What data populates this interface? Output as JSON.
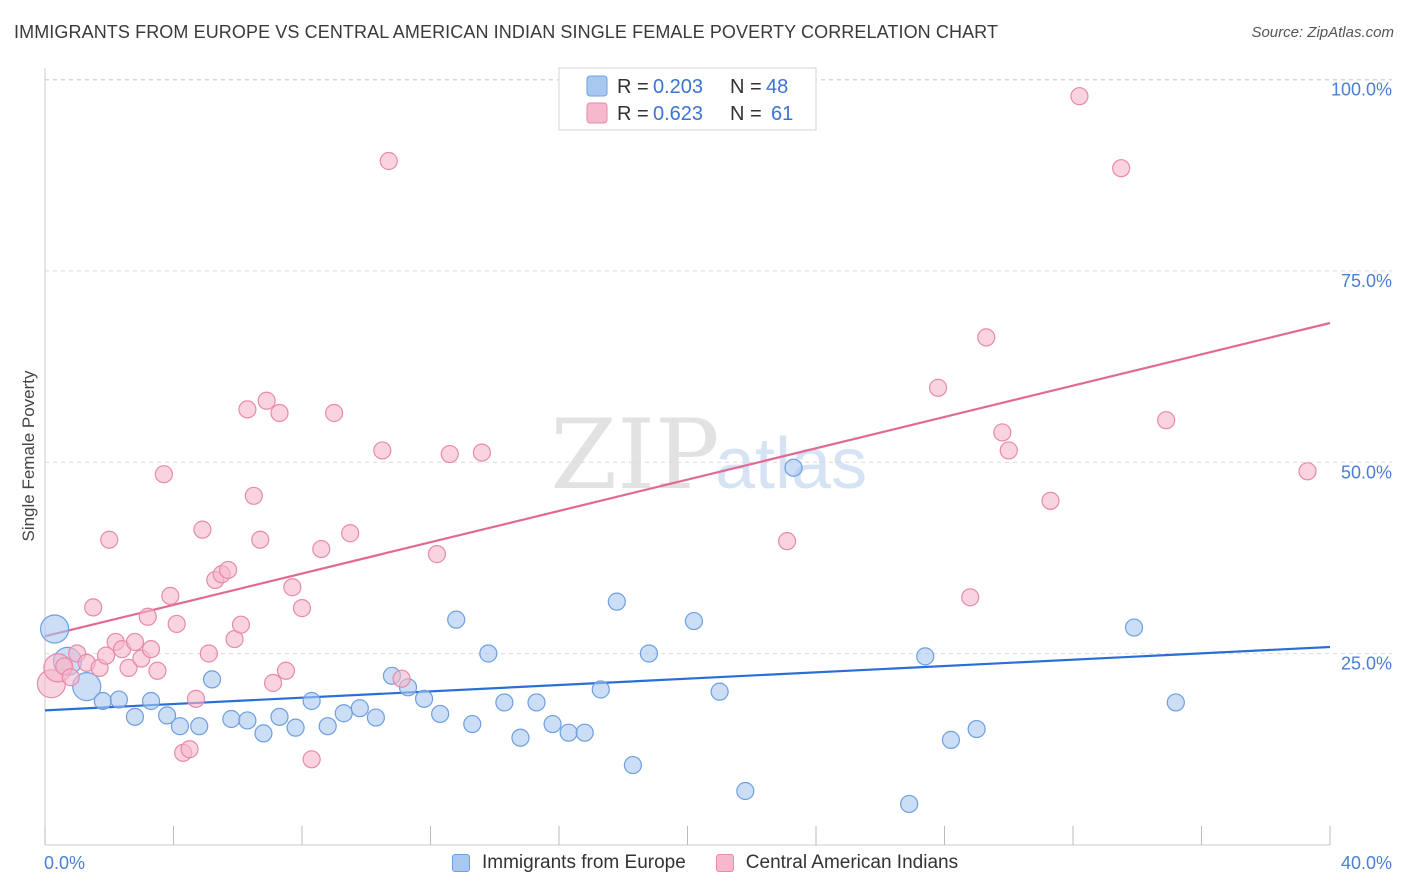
{
  "title": "IMMIGRANTS FROM EUROPE VS CENTRAL AMERICAN INDIAN SINGLE FEMALE POVERTY CORRELATION CHART",
  "source": "Source: ZipAtlas.com",
  "watermark": {
    "zip": "ZIP",
    "atlas": "atlas"
  },
  "colors": {
    "blue_fill": "#a9c8f0",
    "blue_stroke": "#6d9fe0",
    "blue_line": "#2a6fd6",
    "pink_fill": "#f5b8cc",
    "pink_stroke": "#e98aa8",
    "pink_line": "#e06a95",
    "tick_blue": "#4a7fd4",
    "grid": "#d9d9d9"
  },
  "legend": {
    "r_label": "R =",
    "n_label": "N =",
    "rows": [
      {
        "r": "0.203",
        "n": "48"
      },
      {
        "r": "0.623",
        "n": "61"
      }
    ]
  },
  "chart_data": {
    "type": "scatter",
    "title": "IMMIGRANTS FROM EUROPE VS CENTRAL AMERICAN INDIAN SINGLE FEMALE POVERTY CORRELATION CHART",
    "xlabel": "",
    "ylabel": "Single Female Poverty",
    "xlim": [
      0,
      40
    ],
    "ylim": [
      0,
      100
    ],
    "x_tick_labels": [
      "0.0%",
      "40.0%"
    ],
    "y_tick_values": [
      25,
      50,
      75,
      100
    ],
    "y_tick_labels": [
      "25.0%",
      "50.0%",
      "75.0%",
      "100.0%"
    ],
    "grid": true,
    "legend_position": "top-center",
    "series": [
      {
        "name": "Immigrants from Europe",
        "r": 0.203,
        "n": 48,
        "trend": {
          "x": [
            0,
            40
          ],
          "y": [
            18.7,
            27.5
          ]
        },
        "points": [
          {
            "x": 0.3,
            "y": 30,
            "big": true
          },
          {
            "x": 0.7,
            "y": 25.5,
            "big": true
          },
          {
            "x": 1.3,
            "y": 22,
            "big": true
          },
          {
            "x": 1.8,
            "y": 20
          },
          {
            "x": 2.3,
            "y": 20.2
          },
          {
            "x": 2.8,
            "y": 17.8
          },
          {
            "x": 3.3,
            "y": 20
          },
          {
            "x": 3.8,
            "y": 18
          },
          {
            "x": 4.2,
            "y": 16.5
          },
          {
            "x": 4.8,
            "y": 16.5
          },
          {
            "x": 5.2,
            "y": 23
          },
          {
            "x": 5.8,
            "y": 17.5
          },
          {
            "x": 6.3,
            "y": 17.3
          },
          {
            "x": 6.8,
            "y": 15.5
          },
          {
            "x": 7.3,
            "y": 17.8
          },
          {
            "x": 7.8,
            "y": 16.3
          },
          {
            "x": 8.3,
            "y": 20
          },
          {
            "x": 8.8,
            "y": 16.5
          },
          {
            "x": 9.3,
            "y": 18.3
          },
          {
            "x": 9.8,
            "y": 19
          },
          {
            "x": 10.3,
            "y": 17.7
          },
          {
            "x": 10.8,
            "y": 23.5
          },
          {
            "x": 11.3,
            "y": 21.9
          },
          {
            "x": 11.8,
            "y": 20.3
          },
          {
            "x": 12.3,
            "y": 18.2
          },
          {
            "x": 12.8,
            "y": 31.3
          },
          {
            "x": 13.3,
            "y": 16.8
          },
          {
            "x": 13.8,
            "y": 26.6
          },
          {
            "x": 14.3,
            "y": 19.8
          },
          {
            "x": 14.8,
            "y": 14.9
          },
          {
            "x": 15.3,
            "y": 19.8
          },
          {
            "x": 15.8,
            "y": 16.8
          },
          {
            "x": 16.3,
            "y": 15.6
          },
          {
            "x": 16.8,
            "y": 15.6
          },
          {
            "x": 17.3,
            "y": 21.6
          },
          {
            "x": 17.8,
            "y": 33.8
          },
          {
            "x": 18.3,
            "y": 11.1
          },
          {
            "x": 18.8,
            "y": 26.6
          },
          {
            "x": 20.2,
            "y": 31.1
          },
          {
            "x": 21,
            "y": 21.3
          },
          {
            "x": 21.8,
            "y": 7.5
          },
          {
            "x": 23.3,
            "y": 52.4
          },
          {
            "x": 26.9,
            "y": 5.7
          },
          {
            "x": 27.4,
            "y": 26.2
          },
          {
            "x": 28.2,
            "y": 14.6
          },
          {
            "x": 29,
            "y": 16.1
          },
          {
            "x": 33.9,
            "y": 30.2
          },
          {
            "x": 35.2,
            "y": 19.8
          }
        ]
      },
      {
        "name": "Central American Indians",
        "r": 0.623,
        "n": 61,
        "trend": {
          "x": [
            0,
            40
          ],
          "y": [
            29,
            72.5
          ]
        },
        "points": [
          {
            "x": 0.2,
            "y": 22.4,
            "big": true
          },
          {
            "x": 0.4,
            "y": 24.6,
            "big": true
          },
          {
            "x": 0.6,
            "y": 24.8
          },
          {
            "x": 0.8,
            "y": 23.3
          },
          {
            "x": 1,
            "y": 26.6
          },
          {
            "x": 1.3,
            "y": 25.3
          },
          {
            "x": 1.5,
            "y": 33
          },
          {
            "x": 1.7,
            "y": 24.6
          },
          {
            "x": 1.9,
            "y": 26.3
          },
          {
            "x": 2,
            "y": 42.4
          },
          {
            "x": 2.2,
            "y": 28.2
          },
          {
            "x": 2.4,
            "y": 27.2
          },
          {
            "x": 2.6,
            "y": 24.6
          },
          {
            "x": 2.8,
            "y": 28.2
          },
          {
            "x": 3,
            "y": 25.9
          },
          {
            "x": 3.2,
            "y": 31.7
          },
          {
            "x": 3.3,
            "y": 27.2
          },
          {
            "x": 3.5,
            "y": 24.2
          },
          {
            "x": 3.7,
            "y": 51.5
          },
          {
            "x": 3.9,
            "y": 34.6
          },
          {
            "x": 4.1,
            "y": 30.7
          },
          {
            "x": 4.3,
            "y": 12.8
          },
          {
            "x": 4.5,
            "y": 13.3
          },
          {
            "x": 4.7,
            "y": 20.3
          },
          {
            "x": 4.9,
            "y": 43.8
          },
          {
            "x": 5.1,
            "y": 26.6
          },
          {
            "x": 5.3,
            "y": 36.8
          },
          {
            "x": 5.5,
            "y": 37.6
          },
          {
            "x": 5.7,
            "y": 38.2
          },
          {
            "x": 5.9,
            "y": 28.6
          },
          {
            "x": 6.1,
            "y": 30.6
          },
          {
            "x": 6.3,
            "y": 60.5
          },
          {
            "x": 6.5,
            "y": 48.5
          },
          {
            "x": 6.7,
            "y": 42.4
          },
          {
            "x": 6.9,
            "y": 61.7
          },
          {
            "x": 7.1,
            "y": 22.5
          },
          {
            "x": 7.3,
            "y": 60
          },
          {
            "x": 7.5,
            "y": 24.2
          },
          {
            "x": 7.7,
            "y": 35.8
          },
          {
            "x": 8,
            "y": 32.9
          },
          {
            "x": 8.3,
            "y": 11.9
          },
          {
            "x": 8.6,
            "y": 41.1
          },
          {
            "x": 9,
            "y": 60
          },
          {
            "x": 9.5,
            "y": 43.3
          },
          {
            "x": 10.5,
            "y": 54.8
          },
          {
            "x": 10.7,
            "y": 95
          },
          {
            "x": 11.1,
            "y": 23.1
          },
          {
            "x": 12.2,
            "y": 40.4
          },
          {
            "x": 12.6,
            "y": 54.3
          },
          {
            "x": 13.6,
            "y": 54.5
          },
          {
            "x": 23.1,
            "y": 42.2
          },
          {
            "x": 27.8,
            "y": 63.5
          },
          {
            "x": 28.8,
            "y": 34.4
          },
          {
            "x": 29.3,
            "y": 70.5
          },
          {
            "x": 29.8,
            "y": 57.3
          },
          {
            "x": 30,
            "y": 54.8
          },
          {
            "x": 31.3,
            "y": 47.8
          },
          {
            "x": 32.2,
            "y": 104
          },
          {
            "x": 33.5,
            "y": 94
          },
          {
            "x": 34.9,
            "y": 59
          },
          {
            "x": 39.3,
            "y": 51.9
          }
        ]
      }
    ]
  }
}
